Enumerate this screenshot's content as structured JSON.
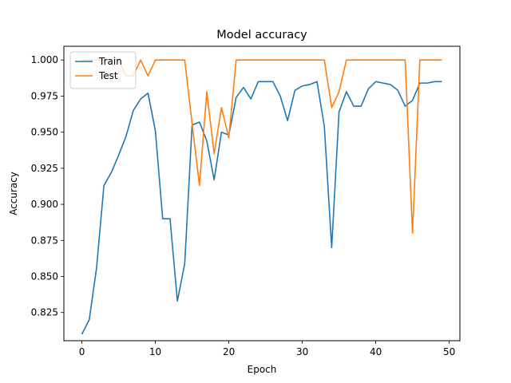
{
  "chart_data": {
    "type": "line",
    "title": "Model accuracy",
    "xlabel": "Epoch",
    "ylabel": "Accuracy",
    "xlim": [
      -2.45,
      51.45
    ],
    "ylim": [
      0.8055,
      1.0095
    ],
    "x_ticks": [
      0,
      10,
      20,
      30,
      40,
      50
    ],
    "y_ticks": [
      0.825,
      0.85,
      0.875,
      0.9,
      0.925,
      0.95,
      0.975,
      1.0
    ],
    "y_tick_labels": [
      "0.825",
      "0.850",
      "0.875",
      "0.900",
      "0.925",
      "0.950",
      "0.975",
      "1.000"
    ],
    "legend_position": "upper-left",
    "grid": false,
    "series": [
      {
        "name": "Train",
        "color": "#1f77b4",
        "x": [
          0,
          1,
          2,
          3,
          4,
          5,
          6,
          7,
          8,
          9,
          10,
          11,
          12,
          13,
          14,
          15,
          16,
          17,
          18,
          19,
          20,
          21,
          22,
          23,
          24,
          25,
          26,
          27,
          28,
          29,
          30,
          31,
          32,
          33,
          34,
          35,
          36,
          37,
          38,
          39,
          40,
          41,
          42,
          43,
          44,
          45,
          46,
          47,
          48,
          49
        ],
        "values": [
          0.81,
          0.82,
          0.856,
          0.913,
          0.922,
          0.934,
          0.947,
          0.965,
          0.973,
          0.977,
          0.951,
          0.89,
          0.89,
          0.833,
          0.859,
          0.955,
          0.957,
          0.944,
          0.917,
          0.95,
          0.948,
          0.974,
          0.981,
          0.973,
          0.985,
          0.985,
          0.985,
          0.975,
          0.958,
          0.979,
          0.982,
          0.983,
          0.985,
          0.954,
          0.87,
          0.964,
          0.978,
          0.968,
          0.968,
          0.98,
          0.985,
          0.984,
          0.983,
          0.979,
          0.968,
          0.972,
          0.984,
          0.984,
          0.985,
          0.985
        ]
      },
      {
        "name": "Test",
        "color": "#ff7f0e",
        "x": [
          0,
          1,
          2,
          3,
          4,
          5,
          6,
          7,
          8,
          9,
          10,
          11,
          12,
          13,
          14,
          15,
          16,
          17,
          18,
          19,
          20,
          21,
          22,
          23,
          24,
          25,
          26,
          27,
          28,
          29,
          30,
          31,
          32,
          33,
          34,
          35,
          36,
          37,
          38,
          39,
          40,
          41,
          42,
          43,
          44,
          45,
          46,
          47,
          48,
          49
        ],
        "values": [
          1.0,
          1.0,
          1.0,
          1.0,
          1.0,
          1.0,
          0.989,
          0.989,
          1.0,
          0.989,
          1.0,
          1.0,
          1.0,
          1.0,
          1.0,
          0.956,
          0.913,
          0.978,
          0.935,
          0.967,
          0.946,
          1.0,
          1.0,
          1.0,
          1.0,
          1.0,
          1.0,
          1.0,
          1.0,
          1.0,
          1.0,
          1.0,
          1.0,
          1.0,
          0.967,
          0.978,
          1.0,
          1.0,
          1.0,
          1.0,
          1.0,
          1.0,
          1.0,
          1.0,
          1.0,
          0.88,
          1.0,
          1.0,
          1.0,
          1.0
        ]
      }
    ]
  }
}
